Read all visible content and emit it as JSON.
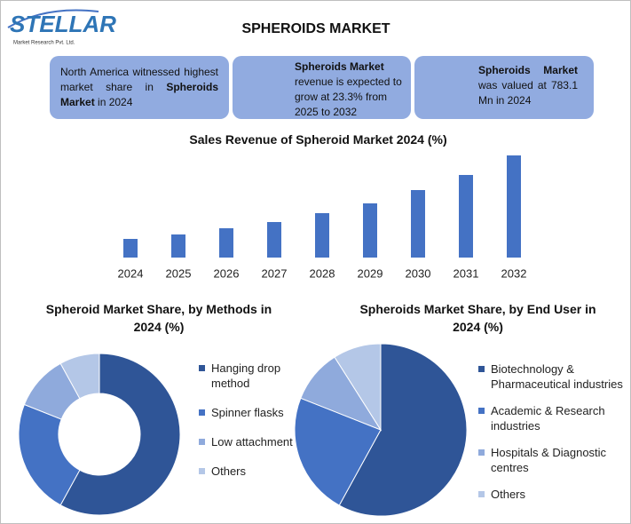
{
  "header": {
    "logo": "STELLAR",
    "tagline": "Market Research Pvt. Ltd.",
    "title": "SPHEROIDS MARKET"
  },
  "info_boxes": [
    {
      "text": "North America witnessed highest market share in",
      "bold": "Spheroids Market",
      "tail": "in 2024"
    },
    {
      "bold": "Spheroids Market",
      "text": "revenue is expected to grow at 23.3% from 2025 to 2032"
    },
    {
      "bold": "Spheroids Market",
      "text": "was valued at 783.1 Mn in 2024"
    }
  ],
  "chart_data": [
    {
      "type": "bar",
      "title": "Sales Revenue of Spheroid Market 2024 (%)",
      "categories": [
        "2024",
        "2025",
        "2026",
        "2027",
        "2028",
        "2029",
        "2030",
        "2031",
        "2032"
      ],
      "values": [
        21,
        26,
        33,
        40,
        50,
        61,
        76,
        93,
        115
      ],
      "color": "#4472c4"
    },
    {
      "type": "donut",
      "title": "Spheroid Market Share, by Methods in 2024 (%)",
      "categories": [
        "Hanging drop method",
        "Spinner flasks",
        "Low attachment",
        "Others"
      ],
      "values": [
        58,
        23,
        11,
        8
      ],
      "colors": [
        "#2f5597",
        "#4472c4",
        "#8faadc",
        "#b4c7e7"
      ]
    },
    {
      "type": "pie",
      "title": "Spheroids Market Share, by End User in 2024 (%)",
      "categories": [
        "Biotechnology & Pharmaceutical industries",
        "Academic & Research industries",
        "Hospitals & Diagnostic centres",
        "Others"
      ],
      "values": [
        58,
        23,
        10,
        9
      ],
      "colors": [
        "#2f5597",
        "#4472c4",
        "#8faadc",
        "#b4c7e7"
      ]
    }
  ]
}
